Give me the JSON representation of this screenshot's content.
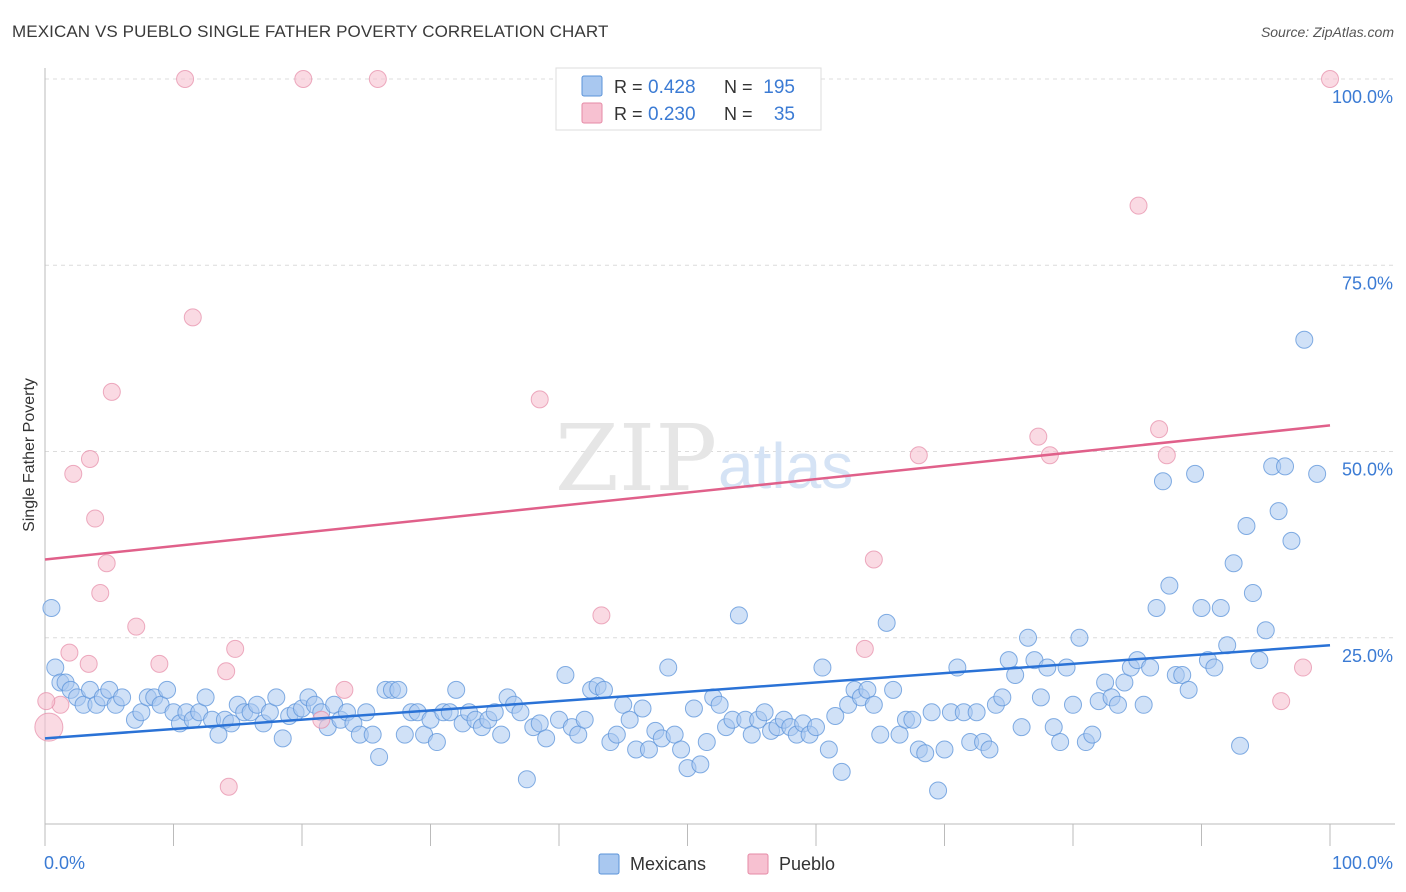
{
  "header": {
    "title": "MEXICAN VS PUEBLO SINGLE FATHER POVERTY CORRELATION CHART",
    "source": "Source: ZipAtlas.com"
  },
  "colors": {
    "mexicans_fill": "#a9c8f0",
    "mexicans_stroke": "#5b93d9",
    "mexicans_line": "#2a72d6",
    "pueblo_fill": "#f7c1d1",
    "pueblo_stroke": "#e68aa6",
    "pueblo_line": "#e0608a",
    "value_text": "#3b7bd4",
    "axis_text": "#3b7bd4"
  },
  "legend_top": {
    "r_label": "R =",
    "n_label": "N =",
    "rows": [
      {
        "r": "0.428",
        "n": "195"
      },
      {
        "r": "0.230",
        "n": "35"
      }
    ]
  },
  "watermark": {
    "zip": "ZIP",
    "atlas": "atlas"
  },
  "chart_data": {
    "type": "scatter",
    "title": "MEXICAN VS PUEBLO SINGLE FATHER POVERTY CORRELATION CHART",
    "xlabel": "",
    "ylabel": "Single Father Poverty",
    "xlim": [
      0,
      100
    ],
    "ylim": [
      0,
      100
    ],
    "x_tick_labels": [
      "0.0%",
      "100.0%"
    ],
    "y_tick_labels": [
      "25.0%",
      "50.0%",
      "75.0%",
      "100.0%"
    ],
    "y_ticks": [
      25,
      50,
      75,
      100
    ],
    "grid": true,
    "legend": [
      "Mexicans",
      "Pueblo"
    ],
    "series": [
      {
        "name": "Mexicans",
        "r": 0.428,
        "n": 195,
        "trend": {
          "x0": 0,
          "y0": 11.5,
          "x1": 100,
          "y1": 24.0
        },
        "points": [
          [
            0.5,
            29
          ],
          [
            0.8,
            21
          ],
          [
            1.2,
            19
          ],
          [
            1.6,
            19
          ],
          [
            2,
            18
          ],
          [
            2.5,
            17
          ],
          [
            3,
            16
          ],
          [
            3.5,
            18
          ],
          [
            4,
            16
          ],
          [
            4.5,
            17
          ],
          [
            5,
            18
          ],
          [
            5.5,
            16
          ],
          [
            6,
            17
          ],
          [
            7,
            14
          ],
          [
            7.5,
            15
          ],
          [
            8,
            17
          ],
          [
            8.5,
            17
          ],
          [
            9,
            16
          ],
          [
            9.5,
            18
          ],
          [
            10,
            15
          ],
          [
            10.5,
            13.5
          ],
          [
            11,
            15
          ],
          [
            11.5,
            14
          ],
          [
            12,
            15
          ],
          [
            12.5,
            17
          ],
          [
            13,
            14
          ],
          [
            13.5,
            12
          ],
          [
            14,
            14
          ],
          [
            14.5,
            13.5
          ],
          [
            15,
            16
          ],
          [
            15.5,
            15
          ],
          [
            16,
            15
          ],
          [
            16.5,
            16
          ],
          [
            17,
            13.5
          ],
          [
            17.5,
            15
          ],
          [
            18,
            17
          ],
          [
            18.5,
            11.5
          ],
          [
            19,
            14.5
          ],
          [
            19.5,
            15
          ],
          [
            20,
            15.5
          ],
          [
            20.5,
            17
          ],
          [
            21,
            16
          ],
          [
            21.5,
            15
          ],
          [
            22,
            13
          ],
          [
            22.5,
            16
          ],
          [
            23,
            14
          ],
          [
            23.5,
            15
          ],
          [
            24,
            13.5
          ],
          [
            24.5,
            12
          ],
          [
            25,
            15
          ],
          [
            25.5,
            12
          ],
          [
            26,
            9
          ],
          [
            26.5,
            18
          ],
          [
            27,
            18
          ],
          [
            27.5,
            18
          ],
          [
            28,
            12
          ],
          [
            28.5,
            15
          ],
          [
            29,
            15
          ],
          [
            29.5,
            12
          ],
          [
            30,
            14
          ],
          [
            30.5,
            11
          ],
          [
            31,
            15
          ],
          [
            31.5,
            15
          ],
          [
            32,
            18
          ],
          [
            32.5,
            13.5
          ],
          [
            33,
            15
          ],
          [
            33.5,
            14
          ],
          [
            34,
            13
          ],
          [
            34.5,
            14
          ],
          [
            35,
            15
          ],
          [
            35.5,
            12
          ],
          [
            36,
            17
          ],
          [
            36.5,
            16
          ],
          [
            37,
            15
          ],
          [
            37.5,
            6
          ],
          [
            38,
            13
          ],
          [
            38.5,
            13.5
          ],
          [
            39,
            11.5
          ],
          [
            40,
            14
          ],
          [
            40.5,
            20
          ],
          [
            41,
            13
          ],
          [
            41.5,
            12
          ],
          [
            42,
            14
          ],
          [
            42.5,
            18
          ],
          [
            43,
            18.5
          ],
          [
            43.5,
            18
          ],
          [
            44,
            11
          ],
          [
            44.5,
            12
          ],
          [
            45,
            16
          ],
          [
            45.5,
            14
          ],
          [
            46,
            10
          ],
          [
            46.5,
            15.5
          ],
          [
            47,
            10
          ],
          [
            47.5,
            12.5
          ],
          [
            48,
            11.5
          ],
          [
            48.5,
            21
          ],
          [
            49,
            12
          ],
          [
            49.5,
            10
          ],
          [
            50,
            7.5
          ],
          [
            50.5,
            15.5
          ],
          [
            51,
            8
          ],
          [
            51.5,
            11
          ],
          [
            52,
            17
          ],
          [
            52.5,
            16
          ],
          [
            53,
            13
          ],
          [
            53.5,
            14
          ],
          [
            54,
            28
          ],
          [
            54.5,
            14
          ],
          [
            55,
            12
          ],
          [
            55.5,
            14
          ],
          [
            56,
            15
          ],
          [
            56.5,
            12.5
          ],
          [
            57,
            13
          ],
          [
            57.5,
            14
          ],
          [
            58,
            13
          ],
          [
            58.5,
            12
          ],
          [
            59,
            13.5
          ],
          [
            59.5,
            12
          ],
          [
            60,
            13
          ],
          [
            60.5,
            21
          ],
          [
            61,
            10
          ],
          [
            61.5,
            14.5
          ],
          [
            62,
            7
          ],
          [
            62.5,
            16
          ],
          [
            63,
            18
          ],
          [
            63.5,
            17
          ],
          [
            64,
            18
          ],
          [
            64.5,
            16
          ],
          [
            65,
            12
          ],
          [
            65.5,
            27
          ],
          [
            66,
            18
          ],
          [
            66.5,
            12
          ],
          [
            67,
            14
          ],
          [
            67.5,
            14
          ],
          [
            68,
            10
          ],
          [
            68.5,
            9.5
          ],
          [
            69,
            15
          ],
          [
            69.5,
            4.5
          ],
          [
            70,
            10
          ],
          [
            70.5,
            15
          ],
          [
            71,
            21
          ],
          [
            71.5,
            15
          ],
          [
            72,
            11
          ],
          [
            72.5,
            15
          ],
          [
            73,
            11
          ],
          [
            73.5,
            10
          ],
          [
            74,
            16
          ],
          [
            74.5,
            17
          ],
          [
            75,
            22
          ],
          [
            75.5,
            20
          ],
          [
            76,
            13
          ],
          [
            76.5,
            25
          ],
          [
            77,
            22
          ],
          [
            77.5,
            17
          ],
          [
            78,
            21
          ],
          [
            78.5,
            13
          ],
          [
            79,
            11
          ],
          [
            79.5,
            21
          ],
          [
            80,
            16
          ],
          [
            80.5,
            25
          ],
          [
            81,
            11
          ],
          [
            81.5,
            12
          ],
          [
            82,
            16.5
          ],
          [
            82.5,
            19
          ],
          [
            83,
            17
          ],
          [
            83.5,
            16
          ],
          [
            84,
            19
          ],
          [
            84.5,
            21
          ],
          [
            85,
            22
          ],
          [
            85.5,
            16
          ],
          [
            86,
            21
          ],
          [
            86.5,
            29
          ],
          [
            87,
            46
          ],
          [
            87.5,
            32
          ],
          [
            88,
            20
          ],
          [
            88.5,
            20
          ],
          [
            89,
            18
          ],
          [
            89.5,
            47
          ],
          [
            90,
            29
          ],
          [
            90.5,
            22
          ],
          [
            91,
            21
          ],
          [
            91.5,
            29
          ],
          [
            92,
            24
          ],
          [
            92.5,
            35
          ],
          [
            93,
            10.5
          ],
          [
            93.5,
            40
          ],
          [
            94,
            31
          ],
          [
            94.5,
            22
          ],
          [
            95,
            26
          ],
          [
            95.5,
            48
          ],
          [
            96,
            42
          ],
          [
            96.5,
            48
          ],
          [
            97,
            38
          ],
          [
            98,
            65
          ],
          [
            99,
            47
          ]
        ]
      },
      {
        "name": "Pueblo",
        "r": 0.23,
        "n": 35,
        "trend": {
          "x0": 0,
          "y0": 35.5,
          "x1": 100,
          "y1": 53.5
        },
        "points": [
          [
            0.3,
            13
          ],
          [
            1.2,
            16
          ],
          [
            1.9,
            23
          ],
          [
            2.2,
            47
          ],
          [
            3.4,
            21.5
          ],
          [
            3.5,
            49
          ],
          [
            3.9,
            41
          ],
          [
            4.3,
            31
          ],
          [
            4.8,
            35
          ],
          [
            5.2,
            58
          ],
          [
            7.1,
            26.5
          ],
          [
            8.9,
            21.5
          ],
          [
            10.9,
            100
          ],
          [
            11.5,
            68
          ],
          [
            14.1,
            20.5
          ],
          [
            14.3,
            5
          ],
          [
            14.8,
            23.5
          ],
          [
            20.1,
            100
          ],
          [
            21.5,
            14
          ],
          [
            23.3,
            18
          ],
          [
            25.9,
            100
          ],
          [
            38.5,
            57
          ],
          [
            43.3,
            28
          ],
          [
            63.8,
            23.5
          ],
          [
            64.5,
            35.5
          ],
          [
            68,
            49.5
          ],
          [
            77.3,
            52
          ],
          [
            78.2,
            49.5
          ],
          [
            85.1,
            83
          ],
          [
            86.7,
            53
          ],
          [
            87.3,
            49.5
          ],
          [
            96.2,
            16.5
          ],
          [
            97.9,
            21
          ],
          [
            100,
            100
          ],
          [
            0.1,
            16.5
          ]
        ]
      }
    ]
  },
  "legend_bottom": [
    {
      "label": "Mexicans"
    },
    {
      "label": "Pueblo"
    }
  ]
}
